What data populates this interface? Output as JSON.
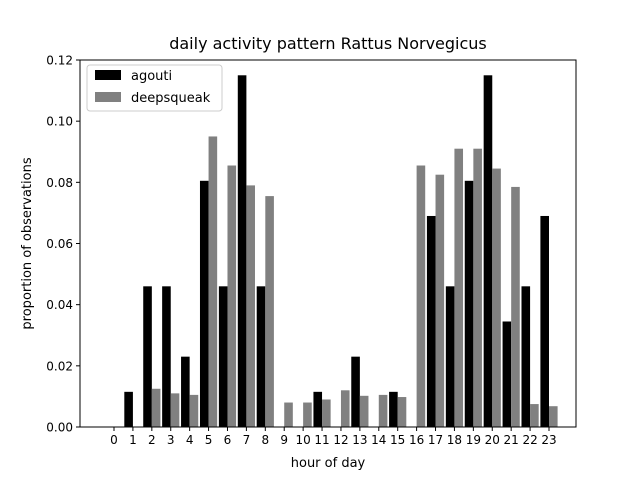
{
  "chart_data": {
    "type": "bar",
    "title": "daily activity pattern Rattus Norvegicus",
    "xlabel": "hour of day",
    "ylabel": "proportion of observations",
    "categories": [
      "0",
      "1",
      "2",
      "3",
      "4",
      "5",
      "6",
      "7",
      "8",
      "9",
      "10",
      "11",
      "12",
      "13",
      "14",
      "15",
      "16",
      "17",
      "18",
      "19",
      "20",
      "21",
      "22",
      "23"
    ],
    "ylim": [
      0,
      0.12
    ],
    "yticks": [
      "0.00",
      "0.02",
      "0.04",
      "0.06",
      "0.08",
      "0.10",
      "0.12"
    ],
    "legend_position": "top-left",
    "grid": false,
    "series": [
      {
        "name": "agouti",
        "color": "#000000",
        "values": [
          0,
          0.0115,
          0.046,
          0.046,
          0.023,
          0.0805,
          0.046,
          0.115,
          0.046,
          0,
          0,
          0.0115,
          0,
          0.023,
          0,
          0.0115,
          0,
          0.069,
          0.046,
          0.0805,
          0.115,
          0.0345,
          0.046,
          0.069
        ]
      },
      {
        "name": "deepsqueak",
        "color": "#808080",
        "values": [
          0,
          0,
          0.0125,
          0.011,
          0.0105,
          0.095,
          0.0855,
          0.079,
          0.0755,
          0.008,
          0.008,
          0.009,
          0.012,
          0.0102,
          0.0105,
          0.0098,
          0.0855,
          0.0825,
          0.091,
          0.091,
          0.0845,
          0.0785,
          0.0075,
          0.0068
        ]
      }
    ]
  }
}
